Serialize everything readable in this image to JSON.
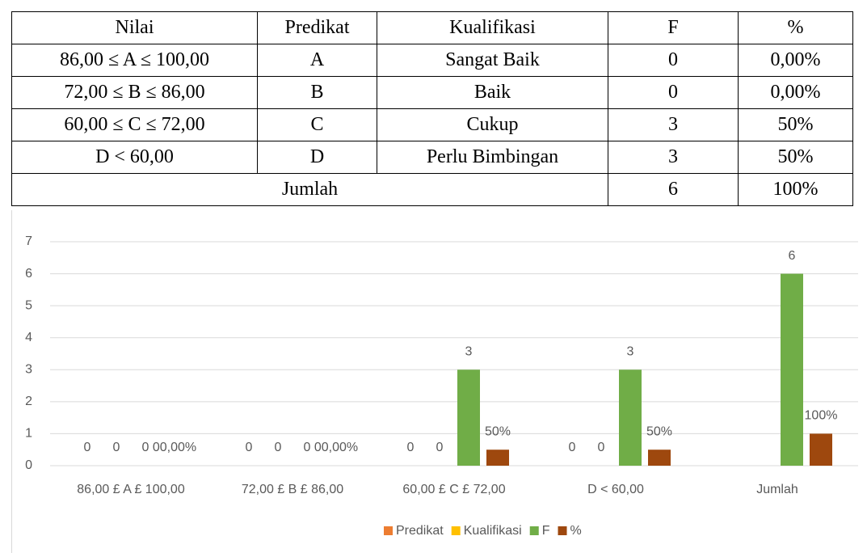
{
  "table": {
    "header": [
      "Nilai",
      "Predikat",
      "Kualifikasi",
      "F",
      "%"
    ],
    "rows": [
      [
        "86,00 ≤ A ≤ 100,00",
        "A",
        "Sangat Baik",
        "0",
        "0,00%"
      ],
      [
        "72,00 ≤ B ≤ 86,00",
        "B",
        "Baik",
        "0",
        "0,00%"
      ],
      [
        "60,00 ≤ C ≤ 72,00",
        "C",
        "Cukup",
        "3",
        "50%"
      ],
      [
        "D < 60,00",
        "D",
        "Perlu Bimbingan",
        "3",
        "50%"
      ]
    ],
    "footer": [
      "Jumlah",
      "6",
      "100%"
    ]
  },
  "chart_data": {
    "type": "bar",
    "categories": [
      "86,00 £ A £ 100,00",
      "72,00 £ B £ 86,00",
      "60,00 £ C £ 72,00",
      "D < 60,00",
      "Jumlah"
    ],
    "series": [
      {
        "name": "Predikat",
        "color": "#ed7d31",
        "values": [
          0,
          0,
          0,
          0,
          null
        ]
      },
      {
        "name": "Kualifikasi",
        "color": "#ffc000",
        "values": [
          0,
          0,
          0,
          0,
          null
        ]
      },
      {
        "name": "F",
        "color": "#70ad47",
        "values": [
          0,
          0,
          3,
          3,
          6
        ]
      },
      {
        "name": "%",
        "color": "#9e480e",
        "values": [
          0,
          0,
          0.5,
          0.5,
          1
        ],
        "value_labels": [
          "00,00%",
          "00,00%",
          "50%",
          "50%",
          "100%"
        ]
      }
    ],
    "ylim": [
      0,
      7
    ],
    "yticks": [
      0,
      1,
      2,
      3,
      4,
      5,
      6,
      7
    ],
    "grid": true,
    "legend": "bottom"
  }
}
